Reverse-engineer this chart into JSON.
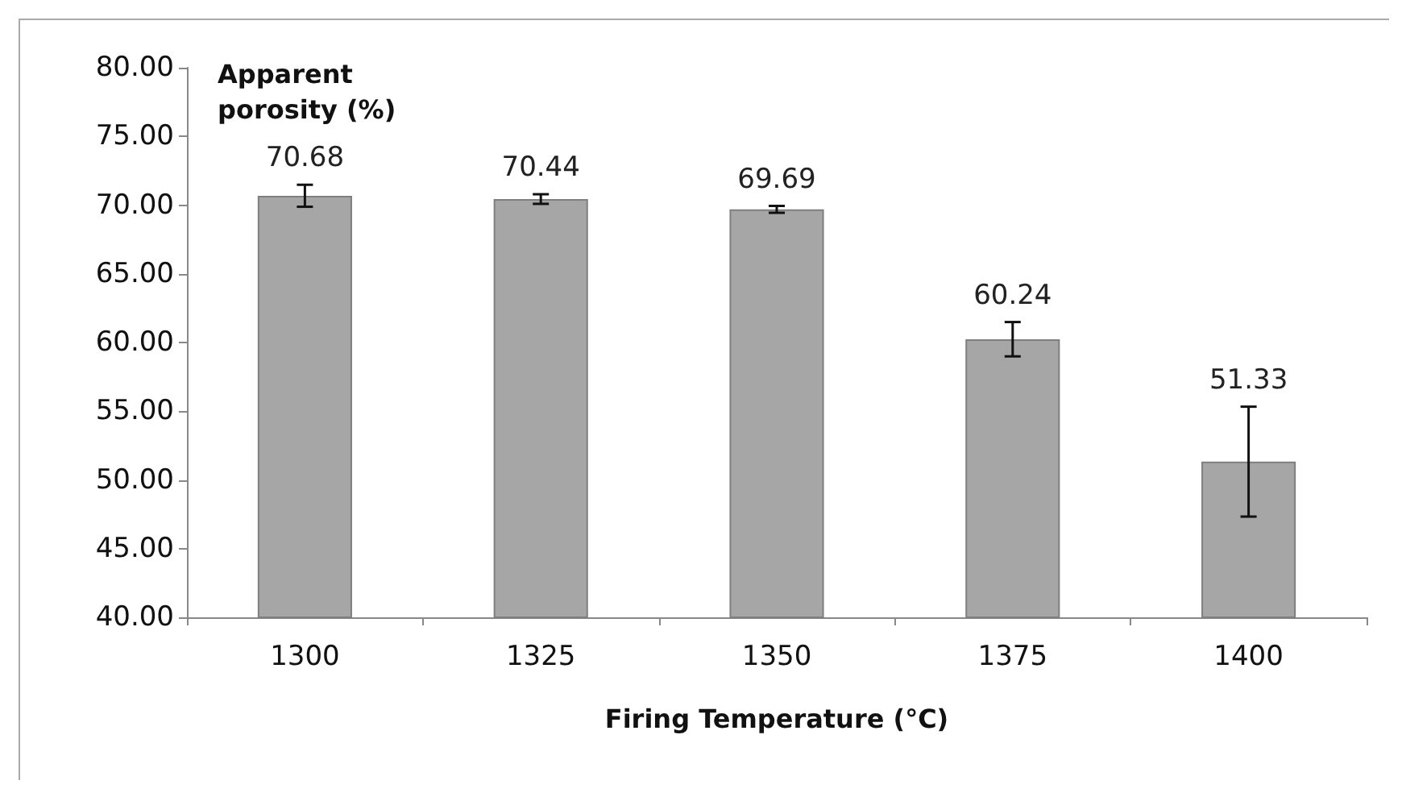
{
  "chart_data": {
    "type": "bar",
    "xlabel": "Firing Temperature (°C)",
    "ylabel": "Apparent porosity (%)",
    "categories": [
      "1300",
      "1325",
      "1350",
      "1375",
      "1400"
    ],
    "values": [
      70.68,
      70.44,
      69.69,
      60.24,
      51.33
    ],
    "errors": [
      0.8,
      0.35,
      0.25,
      1.25,
      4
    ],
    "color": "#a6a6a6",
    "data_labels": true,
    "ylim": [
      40,
      80
    ],
    "yticks": [
      {
        "value": 40,
        "label": "40.00"
      },
      {
        "value": 45,
        "label": "45.00"
      },
      {
        "value": 50,
        "label": "50.00"
      },
      {
        "value": 55,
        "label": "55.00"
      },
      {
        "value": 60,
        "label": "60.00"
      },
      {
        "value": 65,
        "label": "65.00"
      },
      {
        "value": 70,
        "label": "70.00"
      },
      {
        "value": 75,
        "label": "75.00"
      },
      {
        "value": 80,
        "label": "80.00"
      }
    ]
  }
}
